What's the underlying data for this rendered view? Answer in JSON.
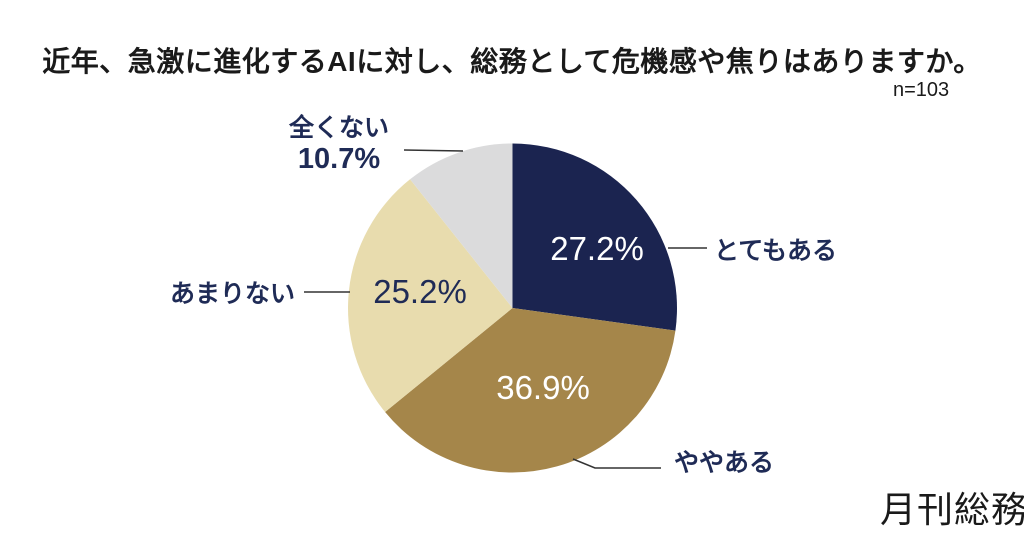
{
  "chart_data": {
    "type": "pie",
    "title": "近年、急激に進化するAIに対し、総務として危機感や焦りはありますか。",
    "sample_size_label": "n=103",
    "start_angle_deg": 0,
    "direction": "clockwise",
    "legend_position": "outside-callouts",
    "slices": [
      {
        "label": "とてもある",
        "value": 27.2,
        "value_label": "27.2%",
        "color": "#1b2450"
      },
      {
        "label": "ややある",
        "value": 36.9,
        "value_label": "36.9%",
        "color": "#a5864a"
      },
      {
        "label": "あまりない",
        "value": 25.2,
        "value_label": "25.2%",
        "color": "#e8dcae"
      },
      {
        "label": "全くない",
        "value": 10.7,
        "value_label": "10.7%",
        "color": "#dbdbdc"
      }
    ],
    "colors": {
      "label_text": "#1f2b56",
      "title_text": "#1a1a1a",
      "pct_on_dark": "#ffffff",
      "pct_on_light": "#1f2b56",
      "leader_line": "#333333",
      "background": "#ffffff"
    }
  },
  "footer": {
    "logo_text": "月刊総務"
  }
}
